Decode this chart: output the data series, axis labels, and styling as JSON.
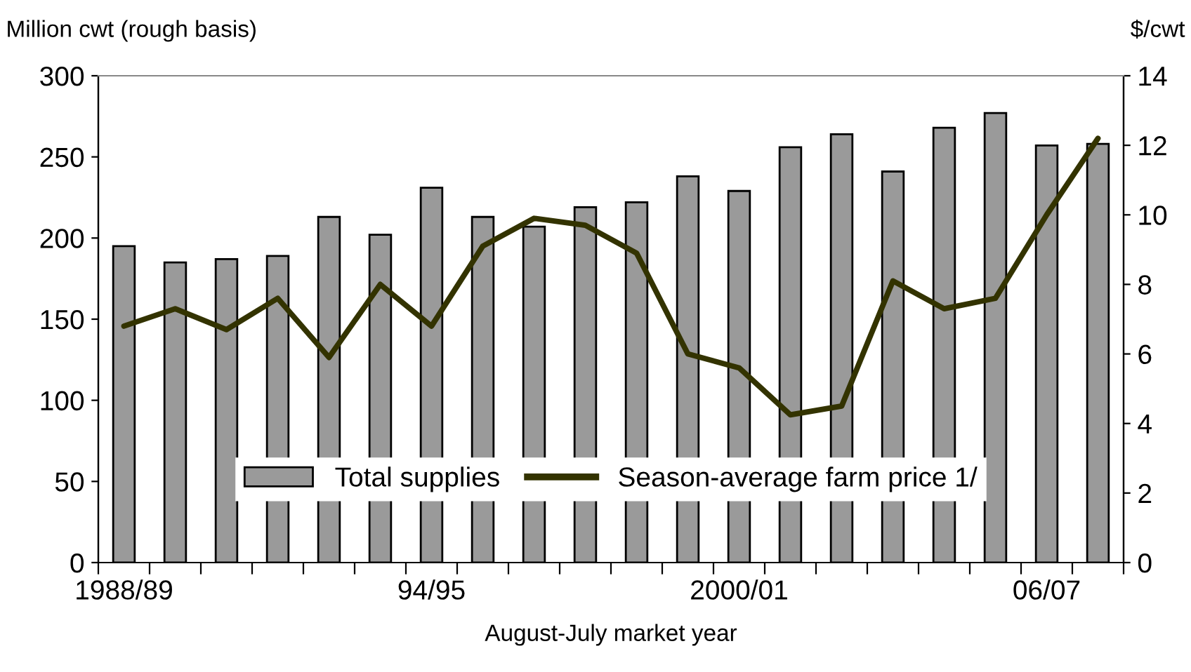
{
  "chart_data": {
    "type": "bar",
    "xlabel": "August-July market year",
    "ylabel": "Million cwt (rough basis)",
    "y2label": "$/cwt",
    "categories": [
      "1988/89",
      null,
      null,
      null,
      null,
      null,
      "94/95",
      null,
      null,
      null,
      null,
      null,
      "2000/01",
      null,
      null,
      null,
      null,
      null,
      "06/07",
      null
    ],
    "series": [
      {
        "name": "Total supplies",
        "color": "#9a9a9a",
        "values": [
          195,
          185,
          187,
          189,
          213,
          202,
          231,
          213,
          207,
          219,
          222,
          238,
          229,
          256,
          264,
          241,
          268,
          277,
          257,
          258
        ]
      },
      {
        "name": "Season-average farm price 1/",
        "type": "line",
        "axis": "y2",
        "color": "#333300",
        "values": [
          6.8,
          7.3,
          6.7,
          7.6,
          5.9,
          8.0,
          6.8,
          9.1,
          9.9,
          9.7,
          8.9,
          6.0,
          5.6,
          4.25,
          4.5,
          8.1,
          7.3,
          7.6,
          10.0,
          12.2
        ]
      }
    ],
    "ylim": [
      0,
      300
    ],
    "yticks": [
      0,
      50,
      100,
      150,
      200,
      250,
      300
    ],
    "y2lim": [
      0,
      14
    ],
    "y2ticks": [
      0,
      2,
      4,
      6,
      8,
      10,
      12,
      14
    ],
    "grid": false,
    "legend": "bottom",
    "marker": "none",
    "line_style": "solid"
  }
}
